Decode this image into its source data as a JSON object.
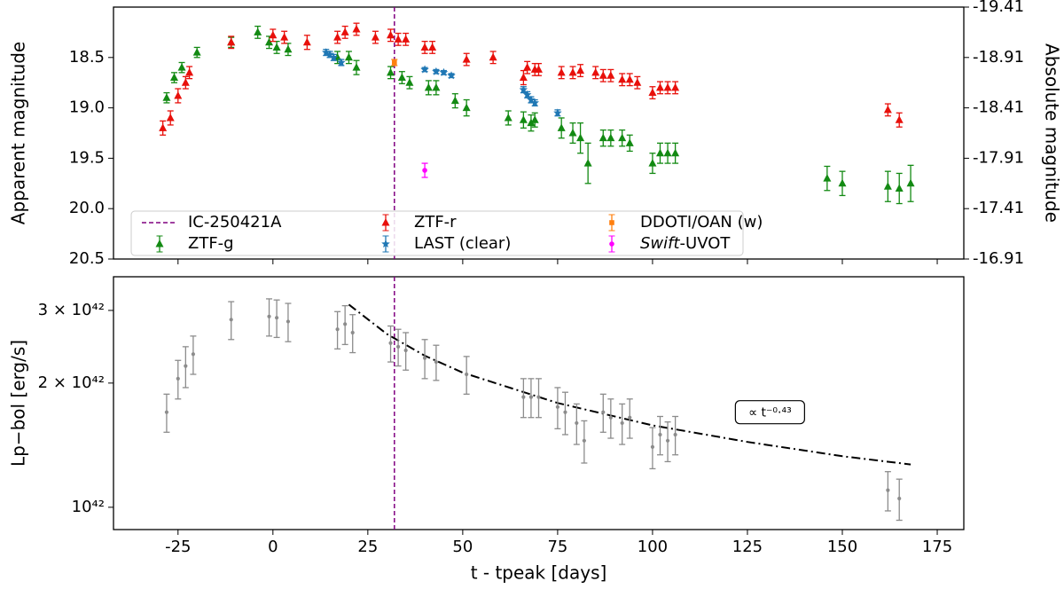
{
  "chart_data": [
    {
      "type": "errorbar",
      "ylabel": "Apparent magnitude",
      "y2label": "Absolute magnitude",
      "xlim": [
        -42,
        182
      ],
      "xticks": [
        -25,
        0,
        25,
        50,
        75,
        100,
        125,
        150,
        175
      ],
      "ylim": [
        18.0,
        20.5
      ],
      "yinvert": true,
      "yticks": [
        18.5,
        {
          "value": 19,
          "label": "19.0"
        },
        19.5,
        {
          "value": 20,
          "label": "20.0"
        },
        20.5
      ],
      "y2lim": [
        -19.41,
        -16.91
      ],
      "y2ticks": [
        -19.41,
        -18.91,
        -18.41,
        -17.91,
        -17.41,
        -16.91
      ],
      "legend": "lower left",
      "vline": {
        "name": "IC-250421A",
        "x": 32,
        "color": "#800080"
      },
      "series": [
        {
          "name": "ZTF-g",
          "color": "#138a13",
          "marker": "triangle",
          "x": [
            -28,
            -26,
            -24,
            -20,
            -11,
            -4,
            -1,
            1,
            4,
            17,
            20,
            22,
            31,
            34,
            36,
            41,
            43,
            48,
            51,
            62,
            66,
            68,
            69,
            76,
            79,
            81,
            83,
            87,
            89,
            92,
            94,
            100,
            102,
            104,
            106,
            146,
            150,
            162,
            165,
            168
          ],
          "values": [
            18.9,
            18.7,
            18.6,
            18.45,
            18.35,
            18.25,
            18.35,
            18.4,
            18.42,
            18.5,
            18.5,
            18.6,
            18.65,
            18.7,
            18.75,
            18.8,
            18.8,
            18.93,
            19.0,
            19.1,
            19.12,
            19.15,
            19.12,
            19.2,
            19.25,
            19.3,
            19.55,
            19.3,
            19.3,
            19.3,
            19.35,
            19.55,
            19.45,
            19.45,
            19.45,
            19.7,
            19.75,
            19.78,
            19.8,
            19.75
          ],
          "errors": [
            0.05,
            0.05,
            0.05,
            0.05,
            0.05,
            0.06,
            0.06,
            0.06,
            0.06,
            0.06,
            0.06,
            0.07,
            0.06,
            0.06,
            0.06,
            0.07,
            0.07,
            0.07,
            0.08,
            0.07,
            0.08,
            0.08,
            0.07,
            0.1,
            0.1,
            0.15,
            0.2,
            0.08,
            0.08,
            0.08,
            0.08,
            0.1,
            0.1,
            0.1,
            0.1,
            0.12,
            0.12,
            0.15,
            0.15,
            0.18
          ]
        },
        {
          "name": "ZTF-r",
          "color": "#e8100b",
          "marker": "triangle",
          "x": [
            -29,
            -27,
            -25,
            -23,
            -22,
            -11,
            0,
            3,
            9,
            17,
            19,
            22,
            27,
            31,
            33,
            35,
            40,
            42,
            51,
            58,
            66,
            67,
            69,
            70,
            76,
            79,
            81,
            85,
            87,
            89,
            92,
            94,
            96,
            100,
            102,
            104,
            106,
            162,
            165
          ],
          "values": [
            19.2,
            19.1,
            18.88,
            18.75,
            18.65,
            18.35,
            18.28,
            18.3,
            18.35,
            18.3,
            18.25,
            18.22,
            18.3,
            18.28,
            18.32,
            18.32,
            18.4,
            18.4,
            18.52,
            18.5,
            18.7,
            18.6,
            18.62,
            18.62,
            18.65,
            18.65,
            18.63,
            18.65,
            18.68,
            18.68,
            18.72,
            18.72,
            18.75,
            18.85,
            18.8,
            18.8,
            18.8,
            19.02,
            19.12
          ],
          "errors": [
            0.07,
            0.07,
            0.07,
            0.06,
            0.06,
            0.06,
            0.06,
            0.06,
            0.07,
            0.06,
            0.06,
            0.06,
            0.06,
            0.06,
            0.06,
            0.06,
            0.06,
            0.06,
            0.06,
            0.06,
            0.07,
            0.06,
            0.06,
            0.06,
            0.06,
            0.06,
            0.06,
            0.06,
            0.06,
            0.06,
            0.06,
            0.06,
            0.06,
            0.06,
            0.06,
            0.06,
            0.06,
            0.06,
            0.07
          ]
        },
        {
          "name": "LAST (clear)",
          "color": "#1f77b4",
          "marker": "star",
          "x": [
            14,
            15,
            16,
            18,
            40,
            43,
            45,
            47,
            66,
            67,
            68,
            69,
            75
          ],
          "values": [
            18.45,
            18.47,
            18.5,
            18.55,
            18.62,
            18.64,
            18.65,
            18.68,
            18.82,
            18.87,
            18.92,
            18.95,
            19.05
          ],
          "errors": [
            0.03,
            0.03,
            0.03,
            0.03,
            0.02,
            0.02,
            0.02,
            0.02,
            0.03,
            0.03,
            0.03,
            0.03,
            0.03
          ]
        },
        {
          "name": "DDOTI/OAN (w)",
          "color": "#ff7f0e",
          "marker": "square",
          "x": [
            32
          ],
          "values": [
            18.55
          ],
          "errors": [
            0.03
          ]
        },
        {
          "name": "Swift-UVOT",
          "color": "#ff00ff",
          "marker": "circle",
          "x": [
            40
          ],
          "values": [
            19.62
          ],
          "errors": [
            0.07
          ]
        }
      ]
    },
    {
      "type": "errorbar",
      "ylabel": "Lp−bol [erg/s]",
      "xlabel": "t - tpeak [days]",
      "xlim": [
        -42,
        182
      ],
      "xticks": [
        -25,
        0,
        25,
        50,
        75,
        100,
        125,
        150,
        175
      ],
      "ylim": [
        8.83e+41,
        3.62e+42
      ],
      "ylog": true,
      "yticks": [
        {
          "value": 1e+42,
          "label": "10⁴²"
        },
        {
          "value": 2e+42,
          "label": "2 × 10⁴²"
        },
        {
          "value": 3e+42,
          "label": "3 × 10⁴²"
        }
      ],
      "vline": {
        "x": 32,
        "color": "#800080"
      },
      "annotation": "∝ t⁻⁰·⁴³",
      "series": [
        {
          "color": "#8c8c8c",
          "marker": "circle",
          "x": [
            -28,
            -25,
            -23,
            -21,
            -11,
            -1,
            1,
            4,
            17,
            19,
            21,
            31,
            33,
            35,
            40,
            43,
            51,
            66,
            68,
            70,
            75,
            77,
            80,
            82,
            87,
            89,
            92,
            94,
            100,
            102,
            104,
            106,
            162,
            165
          ],
          "values": [
            1.7e+42,
            2.05e+42,
            2.2e+42,
            2.35e+42,
            2.85e+42,
            2.9e+42,
            2.88e+42,
            2.82e+42,
            2.7e+42,
            2.78e+42,
            2.65e+42,
            2.5e+42,
            2.45e+42,
            2.4e+42,
            2.3e+42,
            2.25e+42,
            2.1e+42,
            1.85e+42,
            1.85e+42,
            1.85e+42,
            1.75e+42,
            1.7e+42,
            1.6e+42,
            1.45e+42,
            1.7e+42,
            1.65e+42,
            1.6e+42,
            1.65e+42,
            1.4e+42,
            1.5e+42,
            1.45e+42,
            1.5e+42,
            1.1e+42,
            1.05e+42
          ],
          "errors": [
            1.8e+41,
            2.2e+41,
            2.5e+41,
            2.5e+41,
            3e+41,
            3e+41,
            3e+41,
            3e+41,
            2.8e+41,
            3e+41,
            2.8e+41,
            2.5e+41,
            2.5e+41,
            2.5e+41,
            2.5e+41,
            2.2e+41,
            2.2e+41,
            2e+41,
            2e+41,
            2e+41,
            2e+41,
            2e+41,
            1.8e+41,
            1.7e+41,
            1.8e+41,
            1.8e+41,
            1.8e+41,
            1.8e+41,
            1.6e+41,
            1.6e+41,
            1.6e+41,
            1.6e+41,
            1.2e+41,
            1.2e+41
          ]
        }
      ],
      "fit": {
        "color": "#000000",
        "x": [
          20,
          30,
          40,
          50,
          75,
          100,
          125,
          150,
          168
        ],
        "values": [
          3.1e+42,
          2.63e+42,
          2.33e+42,
          2.12e+42,
          1.79e+42,
          1.58e+42,
          1.44e+42,
          1.33e+42,
          1.27e+42
        ]
      }
    }
  ]
}
